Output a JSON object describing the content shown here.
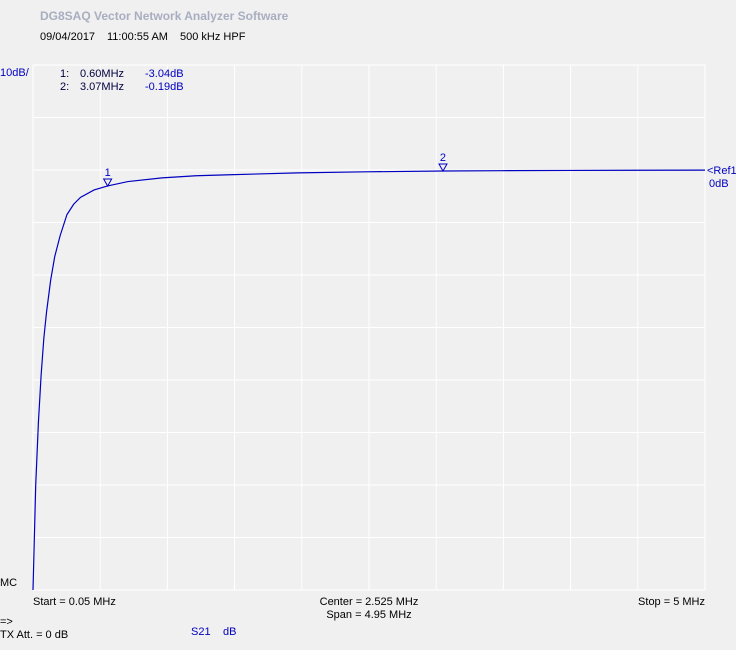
{
  "chart_data": {
    "type": "line",
    "title": "DG8SAQ Vector Network Analyzer Software",
    "date": "09/04/2017",
    "time": "11:00:55 AM",
    "subtitle": "500 kHz HPF",
    "scale_label": "10dB/",
    "ref_label": "<Ref1",
    "ref_value_label": "0dB",
    "bottom_label": "MC",
    "start_label": "Start = 0.05 MHz",
    "center_label": "Center = 2.525 MHz",
    "span_label": "Span = 4.95 MHz",
    "stop_label": "Stop = 5 MHz",
    "arrow_label": "=>",
    "tx_label": "TX Att.  = 0 dB",
    "param_label": "S21",
    "unit_label": "dB",
    "xlim": [
      0.05,
      5
    ],
    "ylim": [
      -80,
      20
    ],
    "xticks": [
      0.05,
      0.545,
      1.04,
      1.535,
      2.03,
      2.525,
      3.02,
      3.515,
      4.01,
      4.505,
      5
    ],
    "yticks": [
      -80,
      -70,
      -60,
      -50,
      -40,
      -30,
      -20,
      -10,
      0,
      10,
      20
    ],
    "grid": true,
    "x": [
      0.05,
      0.07,
      0.09,
      0.11,
      0.13,
      0.15,
      0.18,
      0.21,
      0.25,
      0.3,
      0.35,
      0.4,
      0.5,
      0.6,
      0.75,
      1.0,
      1.25,
      1.5,
      2.0,
      2.5,
      3.07,
      3.5,
      4.0,
      4.5,
      5.0
    ],
    "series": [
      {
        "name": "S21",
        "color": "#0000c0",
        "values": [
          -80,
          -60,
          -48,
          -39,
          -32,
          -27,
          -21,
          -16.5,
          -12.5,
          -8.5,
          -6.5,
          -5.2,
          -3.8,
          -3.04,
          -2.2,
          -1.5,
          -1.1,
          -0.9,
          -0.55,
          -0.35,
          -0.19,
          -0.13,
          -0.08,
          -0.05,
          -0.03
        ]
      }
    ],
    "markers": [
      {
        "id": "1",
        "label": "1:",
        "x": 0.6,
        "value": -3.04,
        "freq_label": "0.60MHz",
        "value_label": "-3.04dB"
      },
      {
        "id": "2",
        "label": "2:",
        "x": 3.07,
        "value": -0.19,
        "freq_label": "3.07MHz",
        "value_label": "-0.19dB"
      }
    ]
  }
}
